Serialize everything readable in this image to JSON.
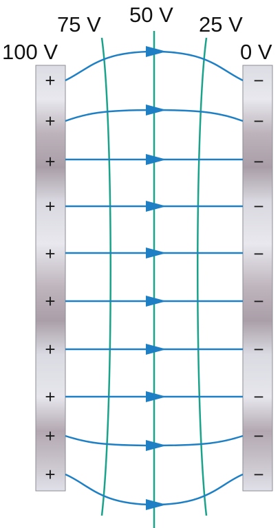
{
  "labels": {
    "left_plate": "100 V",
    "right_plate": "0 V",
    "equipotential_75": "75 V",
    "equipotential_50": "50 V",
    "equipotential_25": "25 V"
  },
  "plates": {
    "left_sign": "+",
    "right_sign": "−",
    "charge_count": 10
  },
  "field_lines": {
    "count": 10,
    "direction": "left-to-right"
  },
  "colors": {
    "field_line": "#1f7fc4",
    "equipotential": "#1aa38a",
    "plate_light": "#e4e4ea",
    "plate_dark": "#a89ca4"
  }
}
